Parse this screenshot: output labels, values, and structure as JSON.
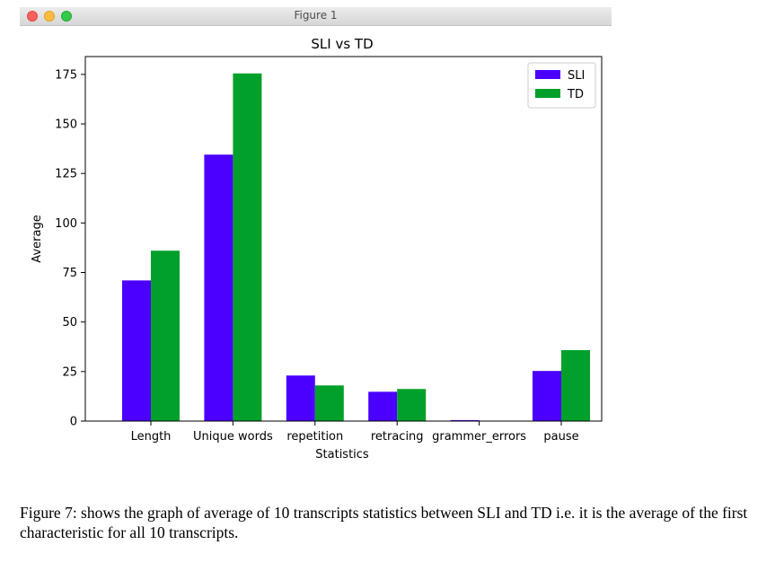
{
  "window": {
    "title": "Figure 1"
  },
  "chart_data": {
    "type": "bar",
    "title": "SLI vs TD",
    "xlabel": "Statistics",
    "ylabel": "Average",
    "categories": [
      "Length",
      "Unique words",
      "repetition",
      "retracing",
      "grammer_errors",
      "pause"
    ],
    "series": [
      {
        "name": "SLI",
        "color": "#4b00ff",
        "values": [
          71,
          134.5,
          23,
          14.8,
          0.5,
          25.3
        ]
      },
      {
        "name": "TD",
        "color": "#00a02a",
        "values": [
          86,
          175.5,
          18,
          16.2,
          0,
          35.8
        ]
      }
    ],
    "ylim": [
      0,
      184
    ],
    "yticks": [
      0,
      25,
      50,
      75,
      100,
      125,
      150,
      175
    ],
    "legend": "top-right",
    "grid": false
  },
  "caption": "Figure 7: shows the graph of average of 10 transcripts statistics between SLI and TD i.e. it is the average of the first characteristic for all 10 transcripts."
}
